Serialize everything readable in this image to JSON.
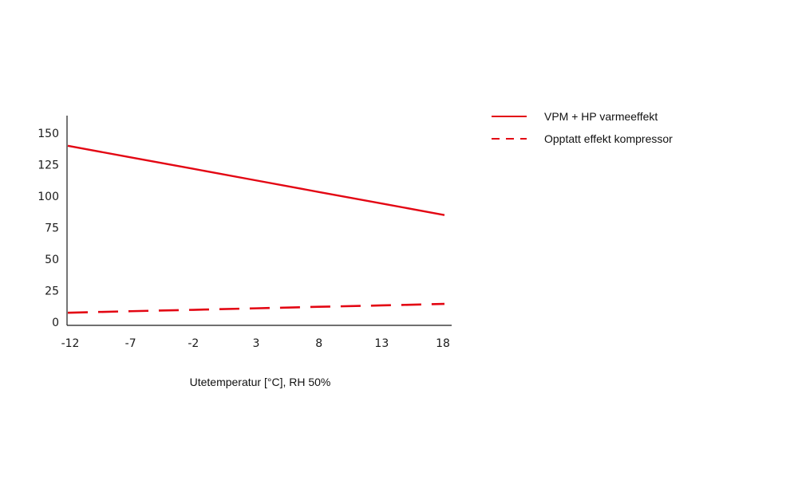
{
  "chart_data": {
    "type": "line",
    "title": "",
    "xlabel": "Utetemperatur [°C], RH 50%",
    "ylabel": "",
    "x": [
      -12,
      -7,
      -2,
      3,
      8,
      13,
      18
    ],
    "x_tick_labels": [
      "-12",
      "-7",
      "-2",
      "3",
      "8",
      "13",
      "18"
    ],
    "y_ticks": [
      0,
      25,
      50,
      75,
      100,
      125,
      150
    ],
    "y_tick_labels": [
      "0",
      "25",
      "50",
      "75",
      "100",
      "125",
      "150"
    ],
    "xlim": [
      -12,
      18
    ],
    "ylim": [
      0,
      165
    ],
    "grid": false,
    "legend_position": "top-right, outside plot",
    "series": [
      {
        "name": "VPM + HP varmeeffekt",
        "color": "#e30613",
        "style": "solid",
        "values": [
          140,
          130.8,
          121.7,
          112.5,
          103.3,
          94.2,
          85
        ]
      },
      {
        "name": "Opptatt effekt kompressor",
        "color": "#e30613",
        "style": "dashed",
        "values": [
          7.5,
          8.7,
          9.8,
          11,
          12.2,
          13.3,
          14.5
        ]
      }
    ]
  }
}
